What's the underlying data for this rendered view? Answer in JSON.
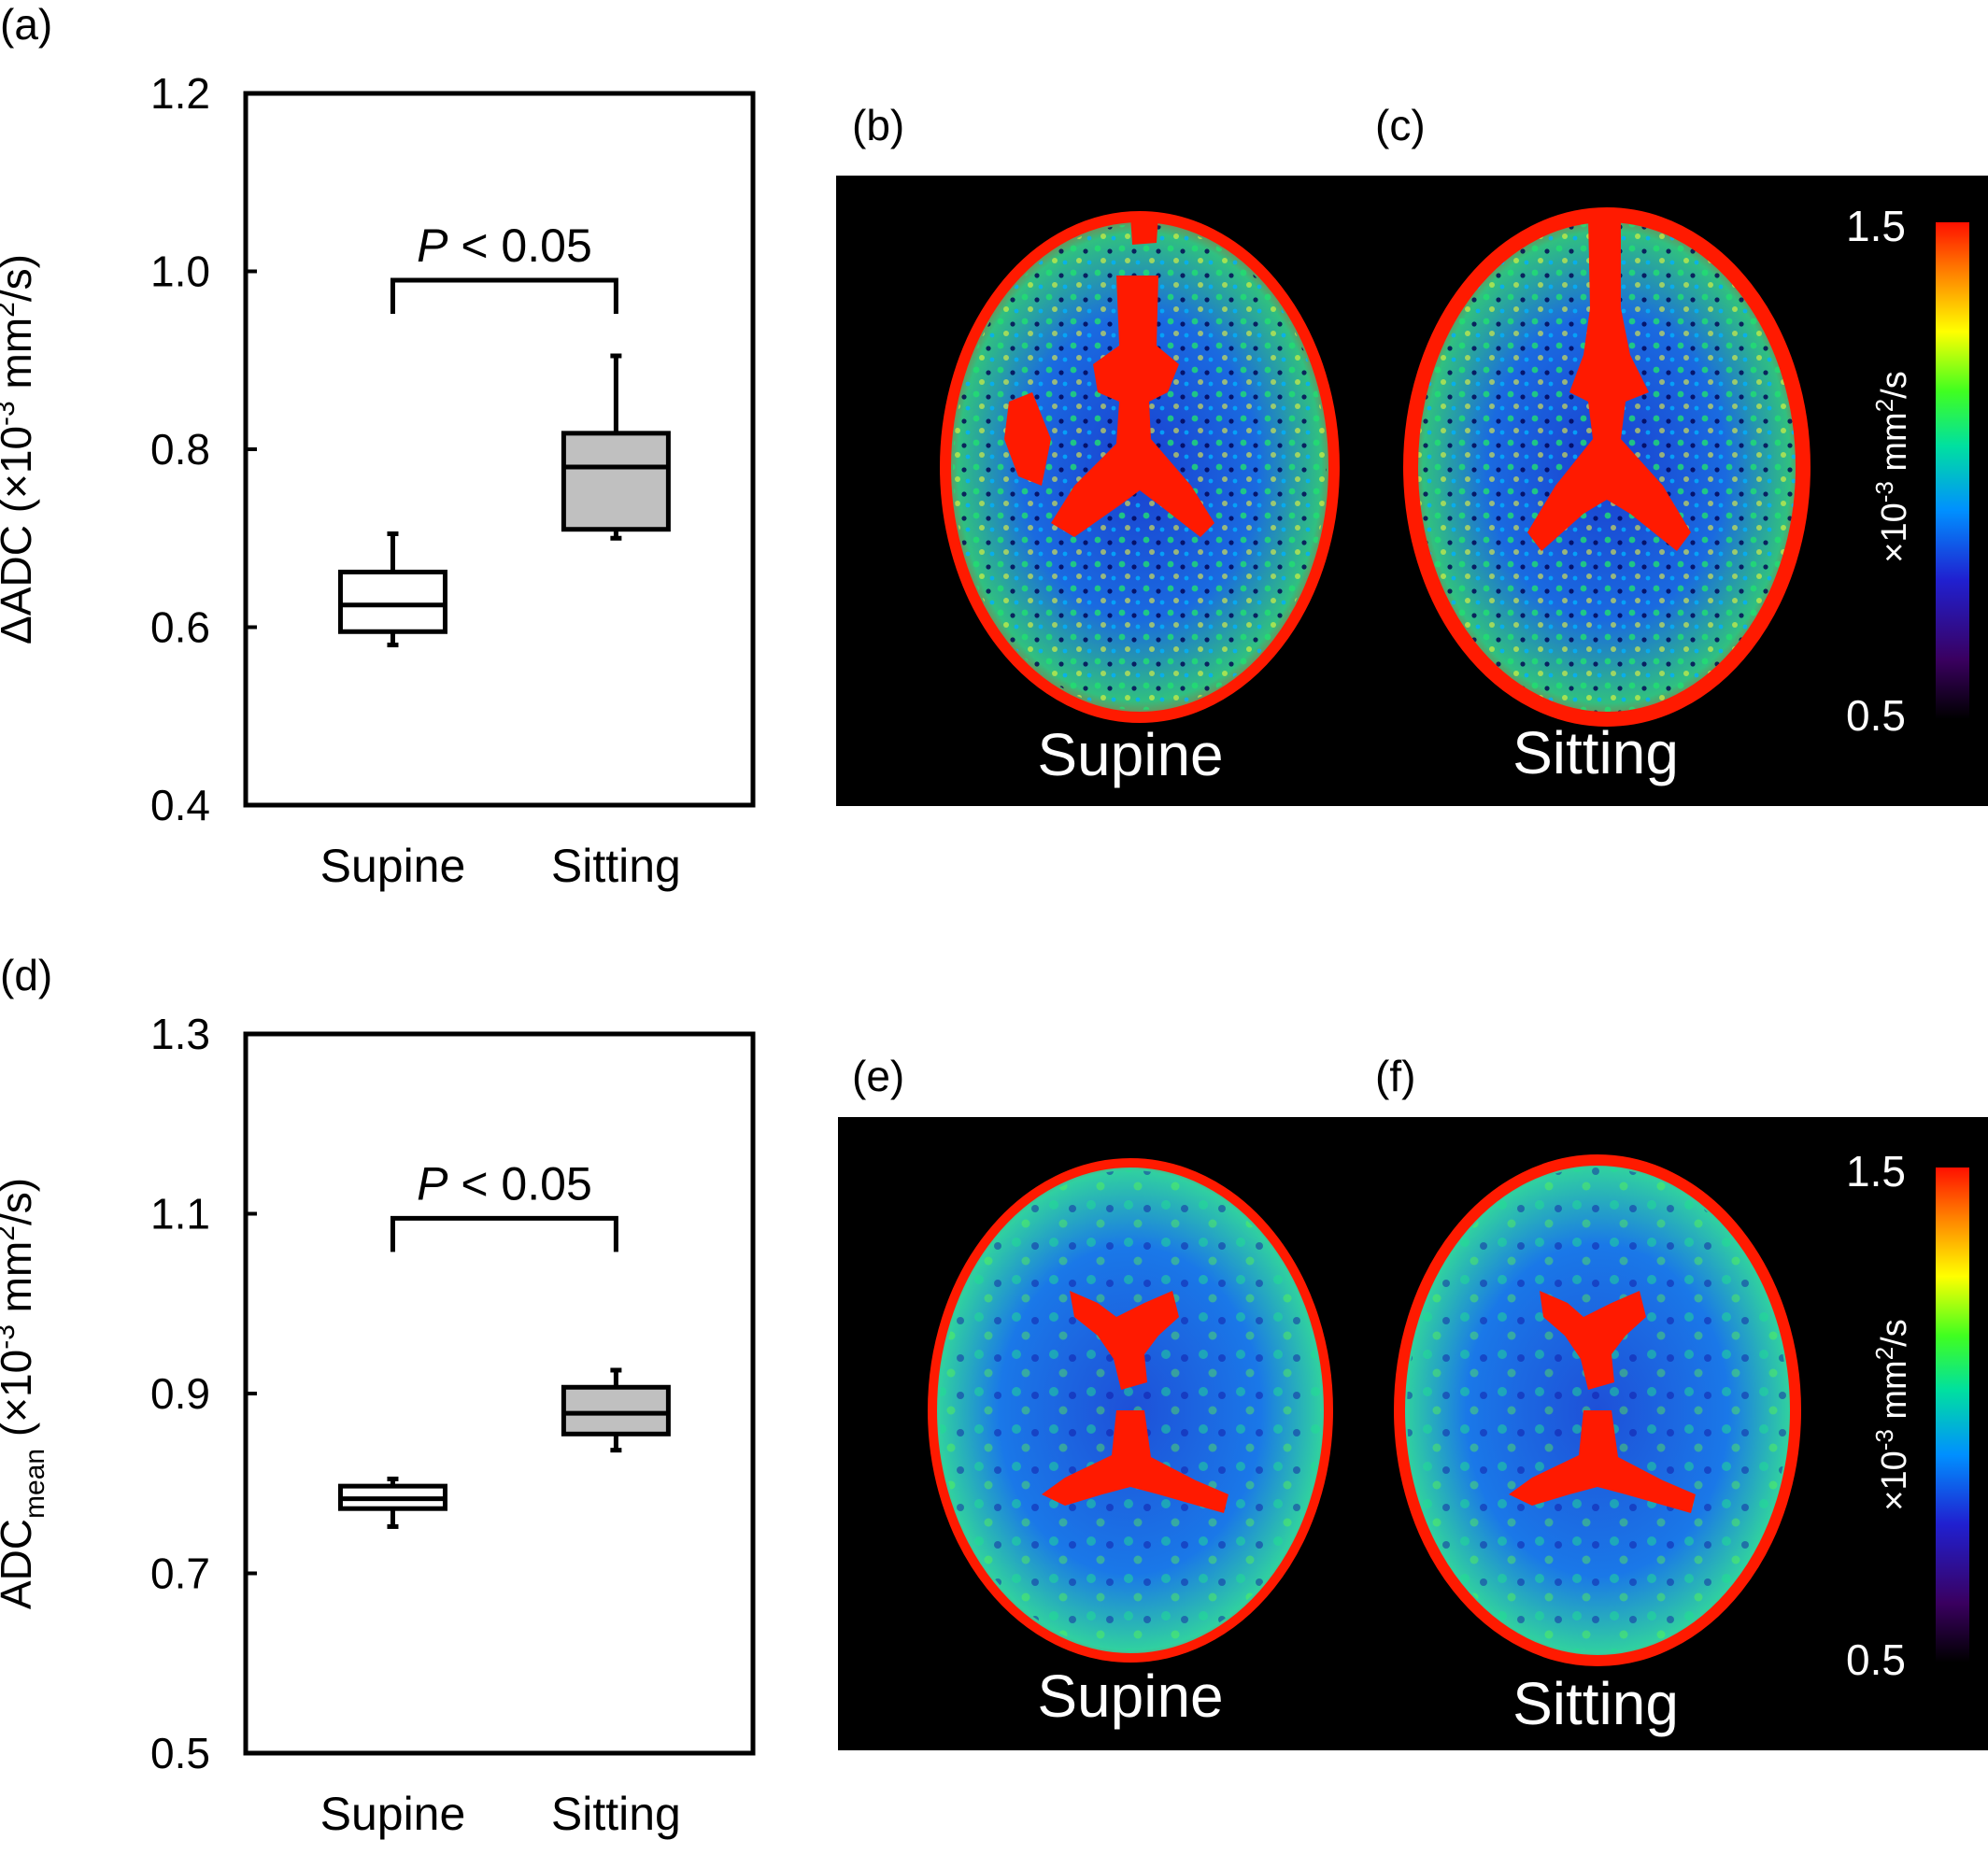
{
  "panels": {
    "a": "(a)",
    "b": "(b)",
    "c": "(c)",
    "d": "(d)",
    "e": "(e)",
    "f": "(f)"
  },
  "chart_data": [
    {
      "type": "box",
      "panel": "(a)",
      "ylabel_prefix": "ΔADC (×10",
      "ylabel_exp": "-3",
      "ylabel_mid": " mm",
      "ylabel_sq": "2",
      "ylabel_suffix": "/s)",
      "ylim": [
        0.4,
        1.2
      ],
      "yticks": [
        "0.4",
        "0.6",
        "0.8",
        "1.0",
        "1.2"
      ],
      "categories": [
        "Supine",
        "Sitting"
      ],
      "boxes": [
        {
          "label": "Supine",
          "min": 0.58,
          "q1": 0.595,
          "median": 0.625,
          "q3": 0.662,
          "max": 0.705,
          "fill": "#ffffff"
        },
        {
          "label": "Sitting",
          "min": 0.7,
          "q1": 0.71,
          "median": 0.78,
          "q3": 0.818,
          "max": 0.905,
          "fill": "#c0c0c0"
        }
      ],
      "significance": {
        "p": "P",
        "text": " < 0.05",
        "level": 0.99
      }
    },
    {
      "type": "box",
      "panel": "(d)",
      "ylabel_prefix": "ADC",
      "ylabel_sub": "mean",
      "ylabel_mid": " (×10",
      "ylabel_exp": "-3",
      "ylabel_mm": " mm",
      "ylabel_sq": "2",
      "ylabel_suffix": "/s)",
      "ylim": [
        0.5,
        1.3
      ],
      "yticks": [
        "0.5",
        "0.7",
        "0.9",
        "1.1",
        "1.3"
      ],
      "categories": [
        "Supine",
        "Sitting"
      ],
      "boxes": [
        {
          "label": "Supine",
          "min": 0.752,
          "q1": 0.772,
          "median": 0.783,
          "q3": 0.797,
          "max": 0.805,
          "fill": "#ffffff"
        },
        {
          "label": "Sitting",
          "min": 0.837,
          "q1": 0.855,
          "median": 0.878,
          "q3": 0.907,
          "max": 0.926,
          "fill": "#c0c0c0"
        }
      ],
      "significance": {
        "p": "P",
        "text": " < 0.05",
        "level": 1.095
      }
    }
  ],
  "maps_top": {
    "left_label": "Supine",
    "right_label": "Sitting",
    "colorbar": {
      "max": "1.5",
      "min": "0.5",
      "unit_prefix": "×10",
      "unit_exp": "-3",
      "unit_mid": " mm",
      "unit_sq": "2",
      "unit_suffix": "/s"
    }
  },
  "maps_bottom": {
    "left_label": "Supine",
    "right_label": "Sitting",
    "colorbar": {
      "max": "1.5",
      "min": "0.5",
      "unit_prefix": "×10",
      "unit_exp": "-3",
      "unit_mid": " mm",
      "unit_sq": "2",
      "unit_suffix": "/s"
    }
  },
  "colors": {
    "red": "#ff1a00",
    "map_bg": "#000000",
    "box_grey": "#c0c0c0"
  }
}
